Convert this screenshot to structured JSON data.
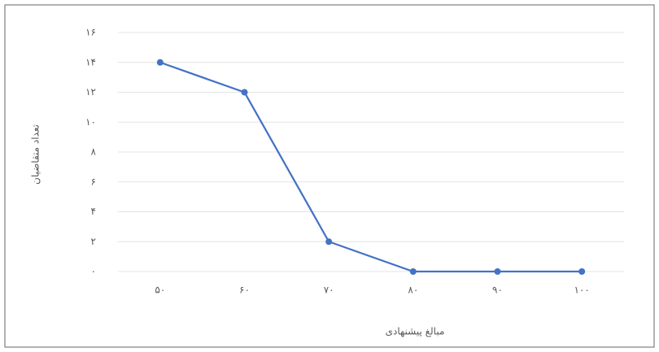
{
  "chart_data": {
    "type": "line",
    "x_label": "مبالغ پیشنهادی",
    "y_label": "تعداد متقاضیان",
    "categories": [
      "۵۰",
      "۶۰",
      "۷۰",
      "۸۰",
      "۹۰",
      "۱۰۰"
    ],
    "values": [
      14,
      12,
      2,
      0,
      0,
      0
    ],
    "color": "#4472c4",
    "ylim": [
      0,
      16
    ],
    "yticks": [
      {
        "value": 0,
        "label": "۰"
      },
      {
        "value": 2,
        "label": "۲"
      },
      {
        "value": 4,
        "label": "۴"
      },
      {
        "value": 6,
        "label": "۶"
      },
      {
        "value": 8,
        "label": "۸"
      },
      {
        "value": 10,
        "label": "۱۰"
      },
      {
        "value": 12,
        "label": "۱۲"
      },
      {
        "value": 14,
        "label": "۱۴"
      },
      {
        "value": 16,
        "label": "۱۶"
      }
    ],
    "grid": true
  }
}
